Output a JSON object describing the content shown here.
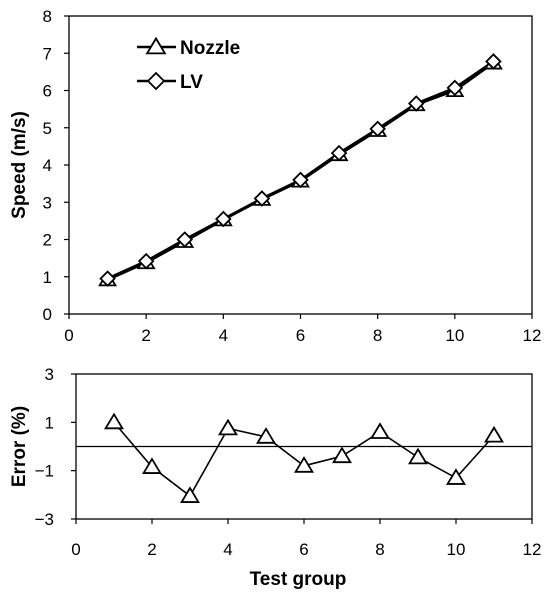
{
  "chart_data": [
    {
      "type": "line",
      "xlabel": "",
      "ylabel": "Speed (m/s)",
      "xlim": [
        0,
        12
      ],
      "ylim": [
        0,
        8
      ],
      "xticks": [
        "0",
        "2",
        "4",
        "6",
        "8",
        "10",
        "12"
      ],
      "yticks": [
        "0",
        "1",
        "2",
        "3",
        "4",
        "5",
        "6",
        "7",
        "8"
      ],
      "grid": false,
      "legend_position": "top-left",
      "x": [
        1,
        2,
        3,
        4,
        5,
        6,
        7,
        8,
        9,
        10,
        11
      ],
      "series": [
        {
          "name": "Nozzle",
          "marker": "triangle",
          "values": [
            0.92,
            1.38,
            1.95,
            2.53,
            3.08,
            3.57,
            4.28,
            4.93,
            5.62,
            6.0,
            6.74
          ]
        },
        {
          "name": "LV",
          "marker": "diamond",
          "values": [
            0.95,
            1.42,
            2.0,
            2.55,
            3.1,
            3.6,
            4.32,
            4.97,
            5.65,
            6.07,
            6.78
          ]
        }
      ]
    },
    {
      "type": "line",
      "xlabel": "Test group",
      "ylabel": "Error (%)",
      "xlim": [
        0,
        12
      ],
      "ylim": [
        -3,
        3
      ],
      "xticks": [
        "0",
        "2",
        "4",
        "6",
        "8",
        "10",
        "12"
      ],
      "yticks": [
        "3",
        "1",
        "−1",
        "−3"
      ],
      "ytick_values": [
        3,
        1,
        -1,
        -3
      ],
      "grid": false,
      "reference_line": 0,
      "x": [
        1,
        2,
        3,
        4,
        5,
        6,
        7,
        8,
        9,
        10,
        11
      ],
      "series": [
        {
          "name": "",
          "marker": "triangle",
          "values": [
            1.0,
            -0.85,
            -2.05,
            0.75,
            0.4,
            -0.8,
            -0.4,
            0.6,
            -0.45,
            -1.3,
            0.45
          ]
        }
      ]
    }
  ]
}
